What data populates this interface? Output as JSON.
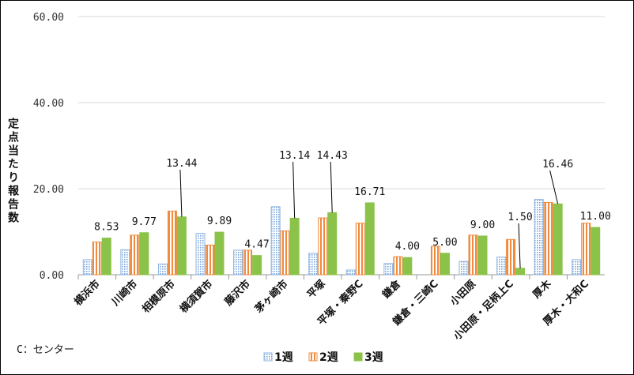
{
  "chart_data": {
    "type": "bar",
    "ylabel": "定点当たり報告数",
    "yticks": [
      "0.00",
      "20.00",
      "40.00",
      "60.00"
    ],
    "ylim": [
      0,
      60
    ],
    "grid": true,
    "legend_placement": "bottom",
    "note": "C：センター",
    "categories": [
      "横浜市",
      "川崎市",
      "相模原市",
      "横須賀市",
      "藤沢市",
      "茅ヶ崎市",
      "平塚",
      "平塚・秦野C",
      "鎌倉",
      "鎌倉・三崎C",
      "小田原",
      "小田原・足柄上C",
      "厚木",
      "厚木・大和C"
    ],
    "series": [
      {
        "name": "1週",
        "color": "#8fb4e3",
        "values": [
          3.5,
          5.8,
          2.5,
          9.6,
          5.7,
          15.8,
          5.0,
          1.1,
          2.6,
          0,
          3.1,
          4.1,
          17.5,
          3.5
        ]
      },
      {
        "name": "2週",
        "color": "#f08a3c",
        "values": [
          7.6,
          9.2,
          14.8,
          6.9,
          5.7,
          10.2,
          13.2,
          12.0,
          4.2,
          6.6,
          9.2,
          8.2,
          16.8,
          12.0
        ]
      },
      {
        "name": "3週",
        "color": "#8bc34a",
        "values": [
          8.53,
          9.77,
          13.44,
          9.89,
          4.47,
          13.14,
          14.43,
          16.71,
          4.0,
          5.0,
          9.0,
          1.5,
          16.46,
          11.0
        ]
      }
    ],
    "data_labels": [
      "8.53",
      "9.77",
      "13.44",
      "9.89",
      "4.47",
      "13.14",
      "14.43",
      "16.71",
      "4.00",
      "5.00",
      "9.00",
      "1.50",
      "16.46",
      "11.00"
    ]
  }
}
